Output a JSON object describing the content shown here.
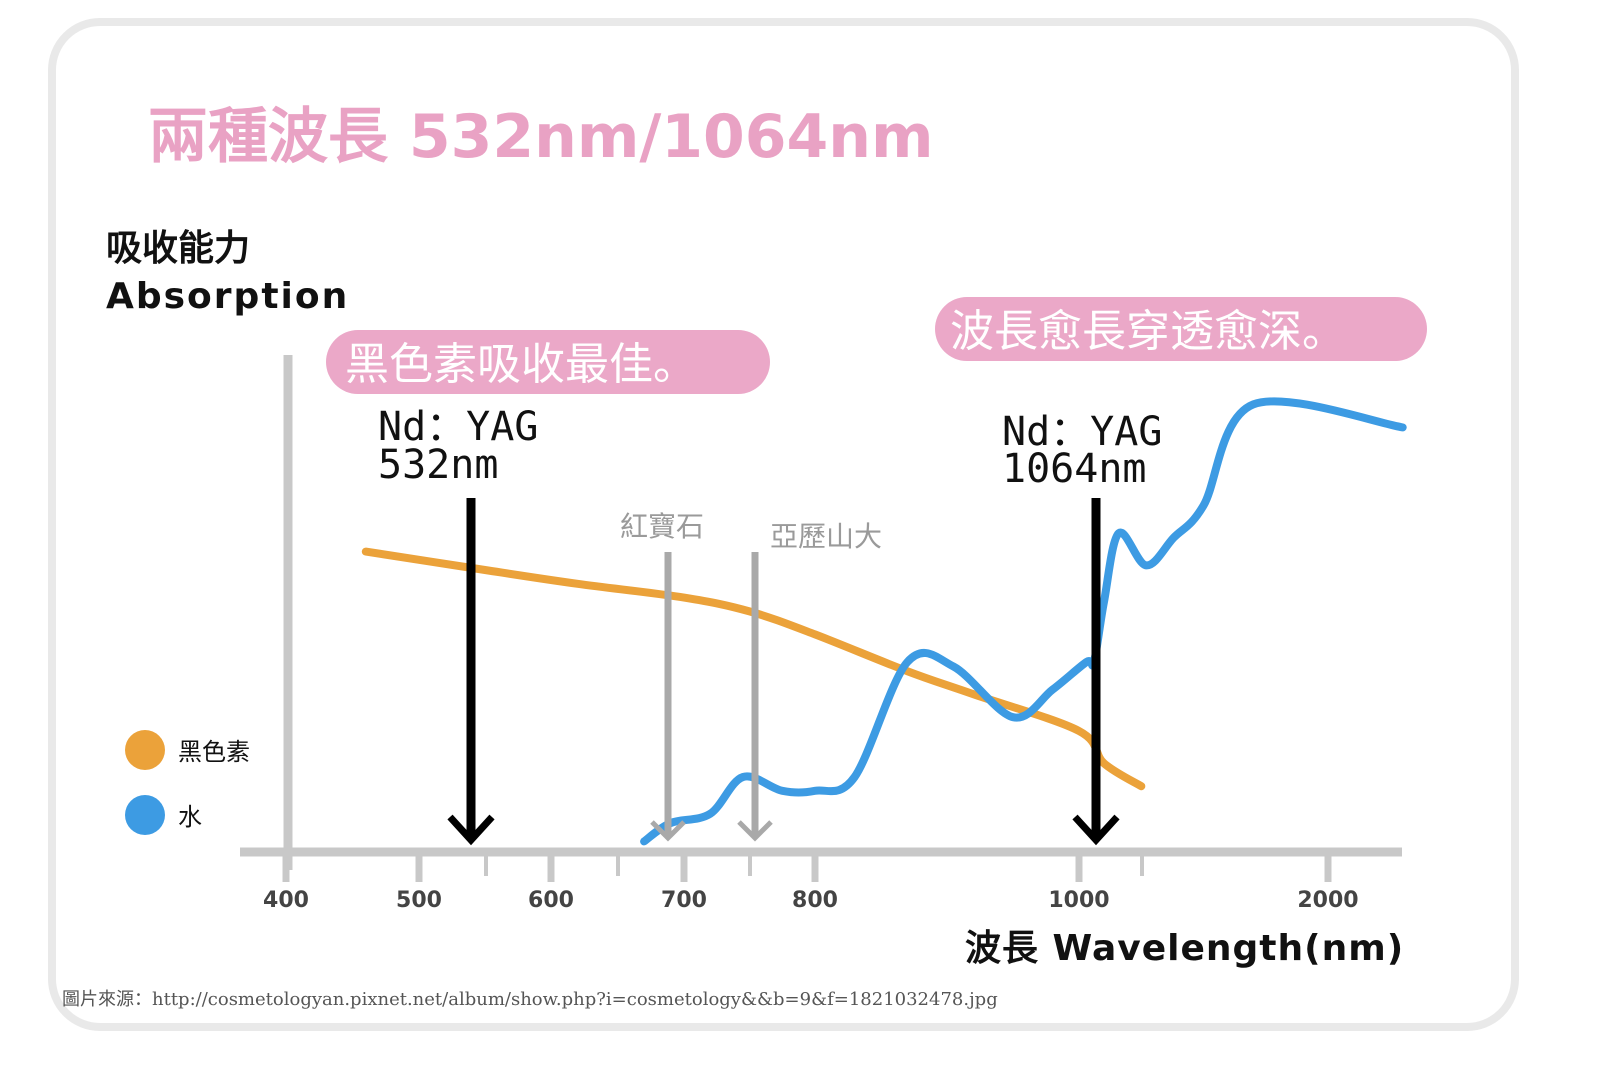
{
  "title": "兩種波長 532nm/1064nm",
  "y_label_zh": "吸收能力",
  "y_label_en": "Absorption",
  "x_label": "波長 Wavelength(nm)",
  "callout_left": "黑色素吸收最佳。",
  "callout_right": "波長愈長穿透愈深。",
  "laser_532_line1": "Nd：YAG",
  "laser_532_line2": "532nm",
  "laser_1064_line1": "Nd：YAG",
  "laser_1064_line2": "1064nm",
  "ruby_label": "紅寶石",
  "alex_label": "亞歷山大",
  "source_text": "圖片來源：http://cosmetologyan.pixnet.net/album/show.php?i=cosmetology&&b=9&f=1821032478.jpg",
  "colors": {
    "title_pink": "#e9a2c4",
    "callout_bg": "#eba8c8",
    "melanin": "#eba23a",
    "water": "#3d9be3",
    "axis": "#c8c8c8",
    "marker_gray": "#a9a9a9",
    "card_border": "#e9e9e9"
  },
  "chart_data": {
    "type": "line",
    "xlabel": "波長 Wavelength(nm)",
    "ylabel": "吸收能力 Absorption",
    "x_scale": "non-linear (ticks unevenly spaced)",
    "x_ticks": [
      400,
      500,
      600,
      700,
      800,
      1000,
      2000
    ],
    "y_ticks": [],
    "legend": [
      {
        "name": "黑色素",
        "color": "#eba23a"
      },
      {
        "name": "水",
        "color": "#3d9be3"
      }
    ],
    "legend_position": "left",
    "series": [
      {
        "name": "黑色素",
        "color": "#eba23a",
        "points": [
          {
            "x": 460,
            "y": 0.64
          },
          {
            "x": 550,
            "y": 0.6
          },
          {
            "x": 620,
            "y": 0.57
          },
          {
            "x": 700,
            "y": 0.54
          },
          {
            "x": 750,
            "y": 0.51
          },
          {
            "x": 800,
            "y": 0.46
          },
          {
            "x": 870,
            "y": 0.38
          },
          {
            "x": 920,
            "y": 0.33
          },
          {
            "x": 1000,
            "y": 0.25
          },
          {
            "x": 1100,
            "y": 0.18
          },
          {
            "x": 1250,
            "y": 0.13
          }
        ]
      },
      {
        "name": "水",
        "color": "#3d9be3",
        "points": [
          {
            "x": 670,
            "y": 0.01
          },
          {
            "x": 690,
            "y": 0.05
          },
          {
            "x": 720,
            "y": 0.07
          },
          {
            "x": 745,
            "y": 0.15
          },
          {
            "x": 775,
            "y": 0.12
          },
          {
            "x": 800,
            "y": 0.12
          },
          {
            "x": 830,
            "y": 0.15
          },
          {
            "x": 870,
            "y": 0.4
          },
          {
            "x": 905,
            "y": 0.39
          },
          {
            "x": 950,
            "y": 0.28
          },
          {
            "x": 980,
            "y": 0.34
          },
          {
            "x": 1030,
            "y": 0.4
          },
          {
            "x": 1060,
            "y": 0.4
          },
          {
            "x": 1100,
            "y": 0.53
          },
          {
            "x": 1160,
            "y": 0.68
          },
          {
            "x": 1270,
            "y": 0.61
          },
          {
            "x": 1380,
            "y": 0.67
          },
          {
            "x": 1500,
            "y": 0.74
          },
          {
            "x": 1700,
            "y": 0.96
          },
          {
            "x": 2300,
            "y": 0.91
          }
        ]
      }
    ],
    "annotations": [
      {
        "x": 532,
        "label": "Nd：YAG 532nm",
        "style": "black-arrow"
      },
      {
        "x": 694,
        "label": "紅寶石",
        "style": "gray-arrow"
      },
      {
        "x": 755,
        "label": "亞歷山大",
        "style": "gray-arrow"
      },
      {
        "x": 1064,
        "label": "Nd：YAG 1064nm",
        "style": "black-arrow"
      }
    ]
  }
}
